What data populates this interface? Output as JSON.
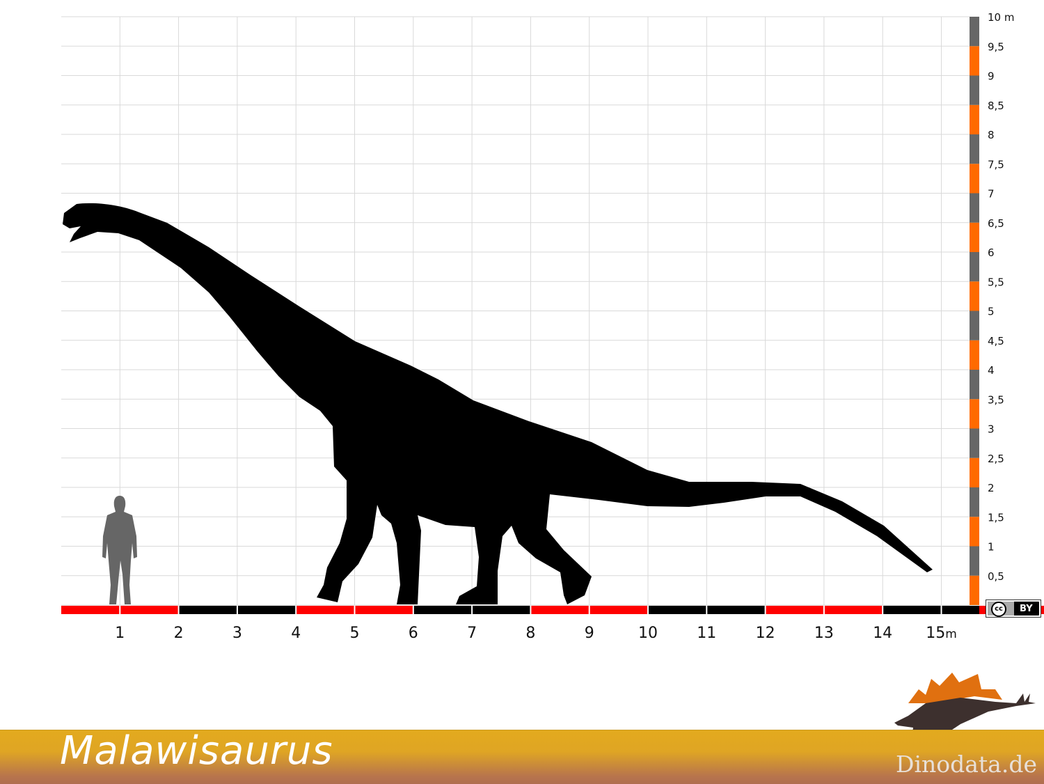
{
  "title": "Malawisaurus",
  "brand": "Dinodata.de",
  "license": {
    "cc": "cc",
    "by": "BY"
  },
  "x_axis": {
    "unit": "m",
    "ticks": [
      "1",
      "2",
      "3",
      "4",
      "5",
      "6",
      "7",
      "8",
      "9",
      "10",
      "11",
      "12",
      "13",
      "14",
      "15"
    ],
    "last_label_suffix": "m"
  },
  "y_axis": {
    "ticks": [
      "10 m",
      "9,5",
      "9",
      "8,5",
      "8",
      "7,5",
      "7",
      "6,5",
      "6",
      "5,5",
      "5",
      "4,5",
      "4",
      "3,5",
      "3",
      "2,5",
      "2",
      "1,5",
      "1",
      "0,5"
    ]
  },
  "colors": {
    "ruler_red": "#ff0000",
    "ruler_black": "#000000",
    "scale_orange": "#ff6a00",
    "scale_gray": "#666666",
    "grid": "#d9d9d9",
    "silhouette": "#000000",
    "human": "#666666"
  },
  "figures": {
    "animal": "Malawisaurus silhouette",
    "human": "human-silhouette"
  }
}
